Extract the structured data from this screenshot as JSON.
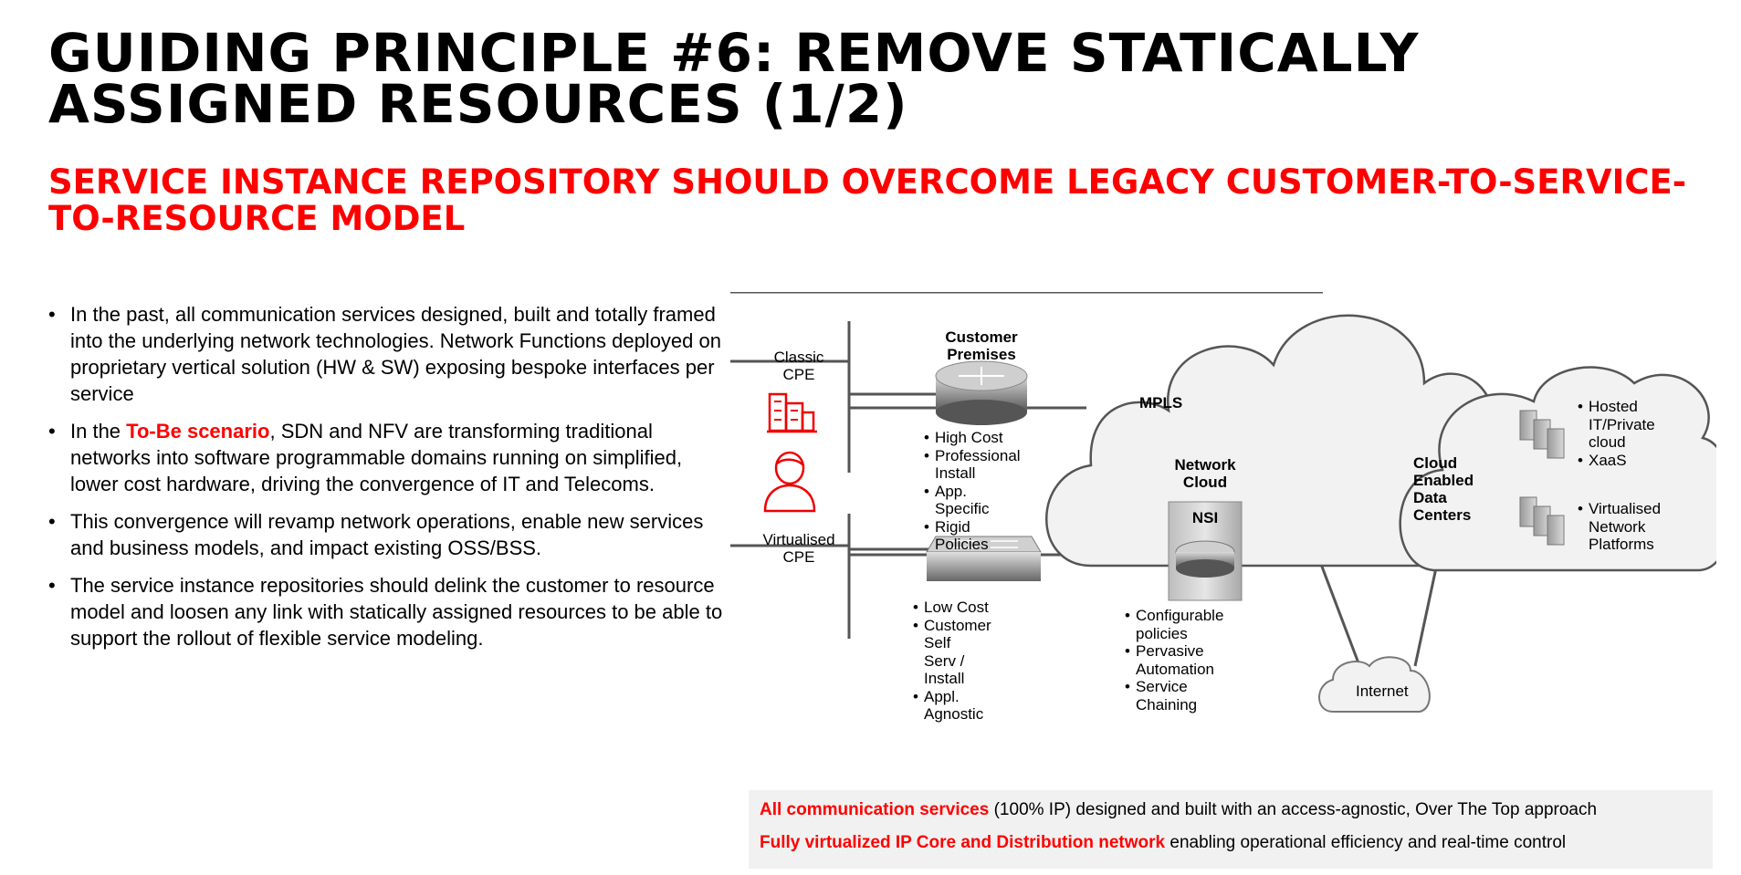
{
  "title": "GUIDING PRINCIPLE #6: REMOVE STATICALLY ASSIGNED RESOURCES (1/2)",
  "subtitle": "SERVICE INSTANCE REPOSITORY SHOULD OVERCOME LEGACY CUSTOMER-TO-SERVICE-TO-RESOURCE MODEL",
  "bullets": {
    "b1": "In the past, all communication services designed, built and totally framed into the underlying network technologies. Network Functions deployed on proprietary vertical solution (HW & SW) exposing bespoke interfaces per service",
    "b2_pre": "In the ",
    "b2_highlight": "To-Be scenario",
    "b2_post": ", SDN and NFV are transforming traditional networks into software programmable domains running on simplified, lower cost hardware, driving the convergence of IT and Telecoms.",
    "b3": "This convergence will revamp network operations, enable new services and business models, and impact existing OSS/BSS.",
    "b4": "The service instance repositories should delink the customer to resource model and loosen any link with statically assigned resources to be able to support the rollout of flexible service modeling."
  },
  "diagram": {
    "classic_cpe_l1": "Classic",
    "classic_cpe_l2": "CPE",
    "virtualised_cpe_l1": "Virtualised",
    "virtualised_cpe_l2": "CPE",
    "customer_premises_l1": "Customer",
    "customer_premises_l2": "Premises",
    "classic_list": [
      "High Cost",
      "Professional",
      "Install",
      "App. Specific",
      "Rigid Policies"
    ],
    "virtual_list": [
      "Low Cost",
      "Customer Self",
      "Serv / Install",
      "Appl. Agnostic"
    ],
    "mpls": "MPLS",
    "network_cloud_l1": "Network",
    "network_cloud_l2": "Cloud",
    "nsi": "NSI",
    "nsi_list": [
      "Configurable policies",
      "Pervasive Automation",
      "Service Chaining"
    ],
    "dc_l1": "Cloud Enabled",
    "dc_l2": "Data Centers",
    "dc_list_top": [
      "Hosted",
      "IT/Private",
      "cloud",
      "XaaS"
    ],
    "dc_list_bottom": [
      "Virtualised",
      "Network",
      "Platforms"
    ],
    "internet": "Internet"
  },
  "bottom": {
    "line1_hl": "All communication services",
    "line1_rest": " (100% IP) designed and built with an access-agnostic, Over The Top approach",
    "line2_hl": "Fully virtualized IP Core and Distribution network",
    "line2_rest": " enabling operational efficiency and real-time control"
  },
  "colors": {
    "accent": "#ff0000",
    "box": "#f1f1f1"
  }
}
